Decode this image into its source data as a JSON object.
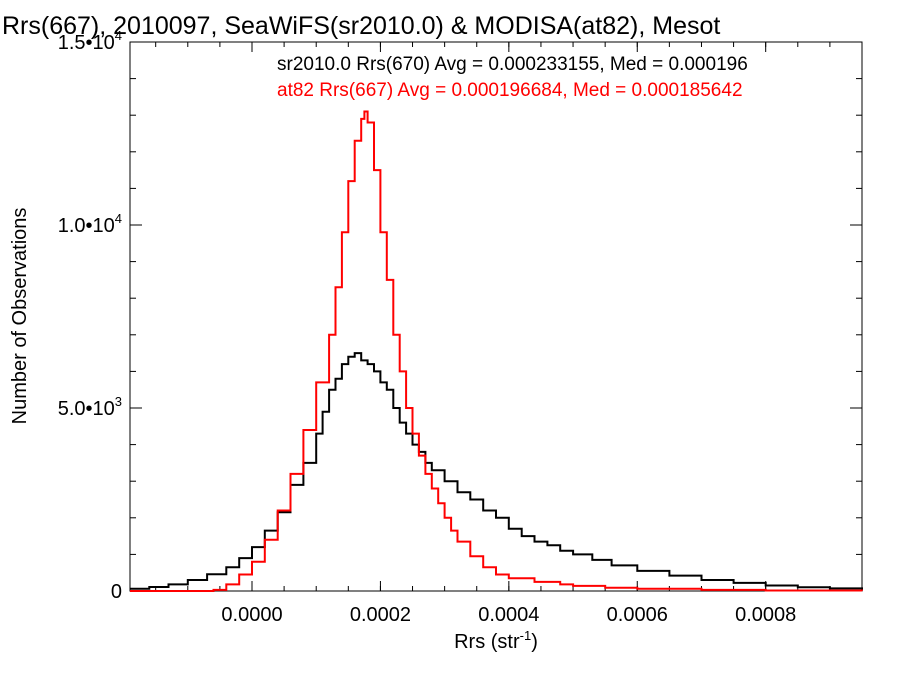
{
  "chart_data": {
    "type": "line",
    "title": "Rrs(667), 2010097, SeaWiFS(sr2010.0) & MODISA(at82), Mesot",
    "xlabel": "Rrs (str",
    "xlabel_sup": "-1",
    "xlabel_tail": ")",
    "ylabel": "Number of Observations",
    "xlim": [
      -0.00019,
      0.00095
    ],
    "ylim": [
      0,
      15000
    ],
    "xticks": [
      {
        "value": 0.0,
        "label": "0.0000"
      },
      {
        "value": 0.0002,
        "label": "0.0002"
      },
      {
        "value": 0.0004,
        "label": "0.0004"
      },
      {
        "value": 0.0006,
        "label": "0.0006"
      },
      {
        "value": 0.0008,
        "label": "0.0008"
      }
    ],
    "yticks": [
      {
        "value": 0,
        "label": "0",
        "sup": ""
      },
      {
        "value": 5000,
        "label": "5.0•10",
        "sup": "3"
      },
      {
        "value": 10000,
        "label": "1.0•10",
        "sup": "4"
      },
      {
        "value": 15000,
        "label": "1.5•10",
        "sup": "4"
      }
    ],
    "annotations": [
      {
        "text": "sr2010.0 Rrs(670) Avg = 0.000233155, Med = 0.000196",
        "color": "#000000"
      },
      {
        "text": "at82 Rrs(667) Avg = 0.000196684, Med = 0.000185642",
        "color": "#ff0000"
      }
    ],
    "series": [
      {
        "color": "#000000",
        "x": [
          -0.00019,
          -0.00016,
          -0.00013,
          -0.0001,
          -7e-05,
          -4e-05,
          -2e-05,
          0.0,
          2e-05,
          4e-05,
          6e-05,
          8e-05,
          0.0001,
          0.00011,
          0.00012,
          0.00013,
          0.00014,
          0.00015,
          0.00016,
          0.00017,
          0.00018,
          0.00019,
          0.0002,
          0.00021,
          0.00022,
          0.00023,
          0.00024,
          0.00025,
          0.00026,
          0.00027,
          0.00028,
          0.0003,
          0.00032,
          0.00034,
          0.00036,
          0.00038,
          0.0004,
          0.00042,
          0.00044,
          0.00046,
          0.00048,
          0.0005,
          0.00053,
          0.00056,
          0.0006,
          0.00065,
          0.0007,
          0.00075,
          0.0008,
          0.00085,
          0.0009,
          0.00095
        ],
        "y": [
          60,
          110,
          180,
          300,
          460,
          650,
          900,
          1200,
          1650,
          2150,
          2900,
          3500,
          4300,
          4900,
          5500,
          5800,
          6200,
          6400,
          6500,
          6300,
          6200,
          6000,
          5700,
          5500,
          5000,
          4600,
          4300,
          4000,
          3800,
          3500,
          3300,
          3000,
          2700,
          2500,
          2200,
          2000,
          1700,
          1500,
          1350,
          1250,
          1100,
          1000,
          850,
          700,
          550,
          420,
          300,
          220,
          150,
          100,
          70,
          40
        ]
      },
      {
        "color": "#ff0000",
        "x": [
          -0.00019,
          -0.0001,
          -7e-05,
          -6e-05,
          -4e-05,
          -2e-05,
          0.0,
          2e-05,
          4e-05,
          6e-05,
          8e-05,
          0.0001,
          0.00012,
          0.00013,
          0.00014,
          0.00015,
          0.00016,
          0.00017,
          0.000175,
          0.00018,
          0.00019,
          0.0002,
          0.00021,
          0.00022,
          0.00023,
          0.00024,
          0.00025,
          0.00026,
          0.00027,
          0.00028,
          0.00029,
          0.0003,
          0.00031,
          0.00032,
          0.00034,
          0.00036,
          0.00038,
          0.0004,
          0.00044,
          0.00048,
          0.0005,
          0.00055,
          0.0006,
          0.0007,
          0.0008,
          0.00095
        ],
        "y": [
          0,
          0,
          0,
          30,
          180,
          450,
          800,
          1400,
          2200,
          3200,
          4400,
          5700,
          7000,
          8300,
          9800,
          11200,
          12300,
          12900,
          13100,
          12800,
          11500,
          9800,
          8500,
          7000,
          6000,
          5000,
          4300,
          3700,
          3200,
          2800,
          2400,
          2000,
          1650,
          1350,
          950,
          650,
          450,
          350,
          250,
          180,
          140,
          90,
          60,
          30,
          15,
          5
        ]
      }
    ]
  }
}
